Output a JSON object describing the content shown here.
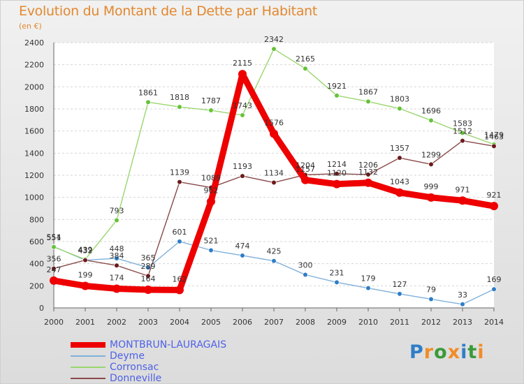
{
  "title": "Evolution du Montant de la Dette par Habitant",
  "subtitle": "(en €)",
  "brand": {
    "text": "Proxiti",
    "letters": [
      {
        "ch": "P",
        "color": "#2f7dc7"
      },
      {
        "ch": "r",
        "color": "#f28c28"
      },
      {
        "ch": "o",
        "color": "#3a9a3a"
      },
      {
        "ch": "x",
        "color": "#f28c28"
      },
      {
        "ch": "i",
        "color": "#2f7dc7"
      },
      {
        "ch": "t",
        "color": "#3a9a3a"
      },
      {
        "ch": "i",
        "color": "#f28c28"
      }
    ]
  },
  "chart_data": {
    "type": "line",
    "title": "Evolution du Montant de la Dette par Habitant",
    "subtitle": "(en €)",
    "x": [
      "2000",
      "2001",
      "2002",
      "2003",
      "2004",
      "2005",
      "2006",
      "2007",
      "2008",
      "2009",
      "2010",
      "2011",
      "2012",
      "2013",
      "2014"
    ],
    "yticks": [
      0,
      200,
      400,
      600,
      800,
      1000,
      1200,
      1400,
      1600,
      1800,
      2000,
      2200,
      2400
    ],
    "ylim": [
      0,
      2400
    ],
    "grid": "horizontal dashed",
    "legend_position": "bottom-left",
    "series": [
      {
        "name": "MONTBRUN-LAURAGAIS",
        "color": "#ee0000",
        "point_color": "#ee0000",
        "emphasis": true,
        "values": [
          247,
          199,
          174,
          164,
          162,
          962,
          2115,
          1576,
          1157,
          1120,
          1132,
          1043,
          999,
          971,
          921
        ]
      },
      {
        "name": "Deyme",
        "color": "#7fb0da",
        "point_color": "#2f7dc7",
        "emphasis": false,
        "values": [
          554,
          432,
          448,
          365,
          601,
          521,
          474,
          425,
          300,
          231,
          179,
          127,
          79,
          33,
          169
        ]
      },
      {
        "name": "Corronsac",
        "color": "#9ad66e",
        "point_color": "#67c23a",
        "emphasis": false,
        "values": [
          551,
          439,
          793,
          1861,
          1818,
          1787,
          1743,
          2342,
          2165,
          1921,
          1867,
          1803,
          1696,
          1583,
          1479
        ]
      },
      {
        "name": "Donneville",
        "color": "#8a4a4a",
        "point_color": "#6b1a1a",
        "emphasis": false,
        "values": [
          356,
          432,
          384,
          289,
          1139,
          1089,
          1193,
          1134,
          1204,
          1214,
          1206,
          1357,
          1299,
          1512,
          1463
        ]
      }
    ]
  }
}
